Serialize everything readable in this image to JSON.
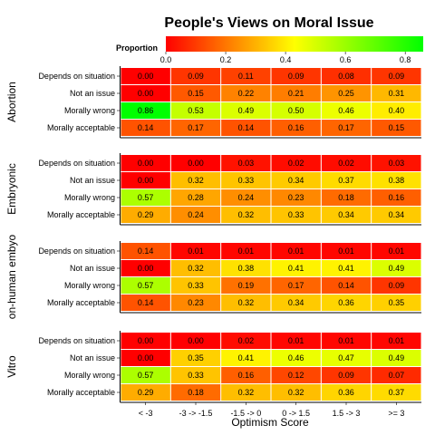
{
  "chart_data": {
    "type": "heatmap",
    "title": "People's Views on Moral Issue",
    "xlabel": "Optimism Score",
    "x_categories": [
      "< -3",
      "-3 -> -1.5",
      "-1.5 -> 0",
      "0 -> 1.5",
      "1.5 -> 3",
      ">= 3"
    ],
    "y_categories": [
      "Depends on situation",
      "Not an issue",
      "Morally wrong",
      "Morally acceptable"
    ],
    "legend": {
      "title": "Proportion",
      "ticks": [
        "0.0",
        "0.2",
        "0.4",
        "0.6",
        "0.8"
      ],
      "tick_values": [
        0,
        0.2,
        0.4,
        0.6,
        0.8
      ],
      "range": [
        0,
        0.86
      ],
      "low_color": "#ff0000",
      "high_color": "#00ff00"
    },
    "panels": [
      {
        "facet": "Abortion",
        "values": [
          [
            "0.00",
            "0.09",
            "0.11",
            "0.09",
            "0.08",
            "0.09"
          ],
          [
            "0.00",
            "0.15",
            "0.22",
            "0.21",
            "0.25",
            "0.31"
          ],
          [
            "0.86",
            "0.53",
            "0.49",
            "0.50",
            "0.46",
            "0.40"
          ],
          [
            "0.14",
            "0.17",
            "0.14",
            "0.16",
            "0.17",
            "0.15"
          ]
        ]
      },
      {
        "facet": "Embryonic",
        "values": [
          [
            "0.00",
            "0.00",
            "0.03",
            "0.02",
            "0.02",
            "0.03"
          ],
          [
            "0.00",
            "0.32",
            "0.33",
            "0.34",
            "0.37",
            "0.38"
          ],
          [
            "0.57",
            "0.28",
            "0.24",
            "0.23",
            "0.18",
            "0.16"
          ],
          [
            "0.29",
            "0.24",
            "0.32",
            "0.33",
            "0.34",
            "0.34"
          ]
        ]
      },
      {
        "facet": "on-human embyo",
        "values": [
          [
            "0.14",
            "0.01",
            "0.01",
            "0.01",
            "0.01",
            "0.01"
          ],
          [
            "0.00",
            "0.32",
            "0.38",
            "0.41",
            "0.41",
            "0.49"
          ],
          [
            "0.57",
            "0.33",
            "0.19",
            "0.17",
            "0.14",
            "0.09"
          ],
          [
            "0.14",
            "0.23",
            "0.32",
            "0.34",
            "0.36",
            "0.35"
          ]
        ]
      },
      {
        "facet": "Vitro",
        "values": [
          [
            "0.00",
            "0.00",
            "0.02",
            "0.01",
            "0.01",
            "0.01"
          ],
          [
            "0.00",
            "0.35",
            "0.41",
            "0.46",
            "0.47",
            "0.49"
          ],
          [
            "0.57",
            "0.33",
            "0.16",
            "0.12",
            "0.09",
            "0.07"
          ],
          [
            "0.29",
            "0.18",
            "0.32",
            "0.32",
            "0.36",
            "0.37"
          ]
        ]
      }
    ]
  }
}
